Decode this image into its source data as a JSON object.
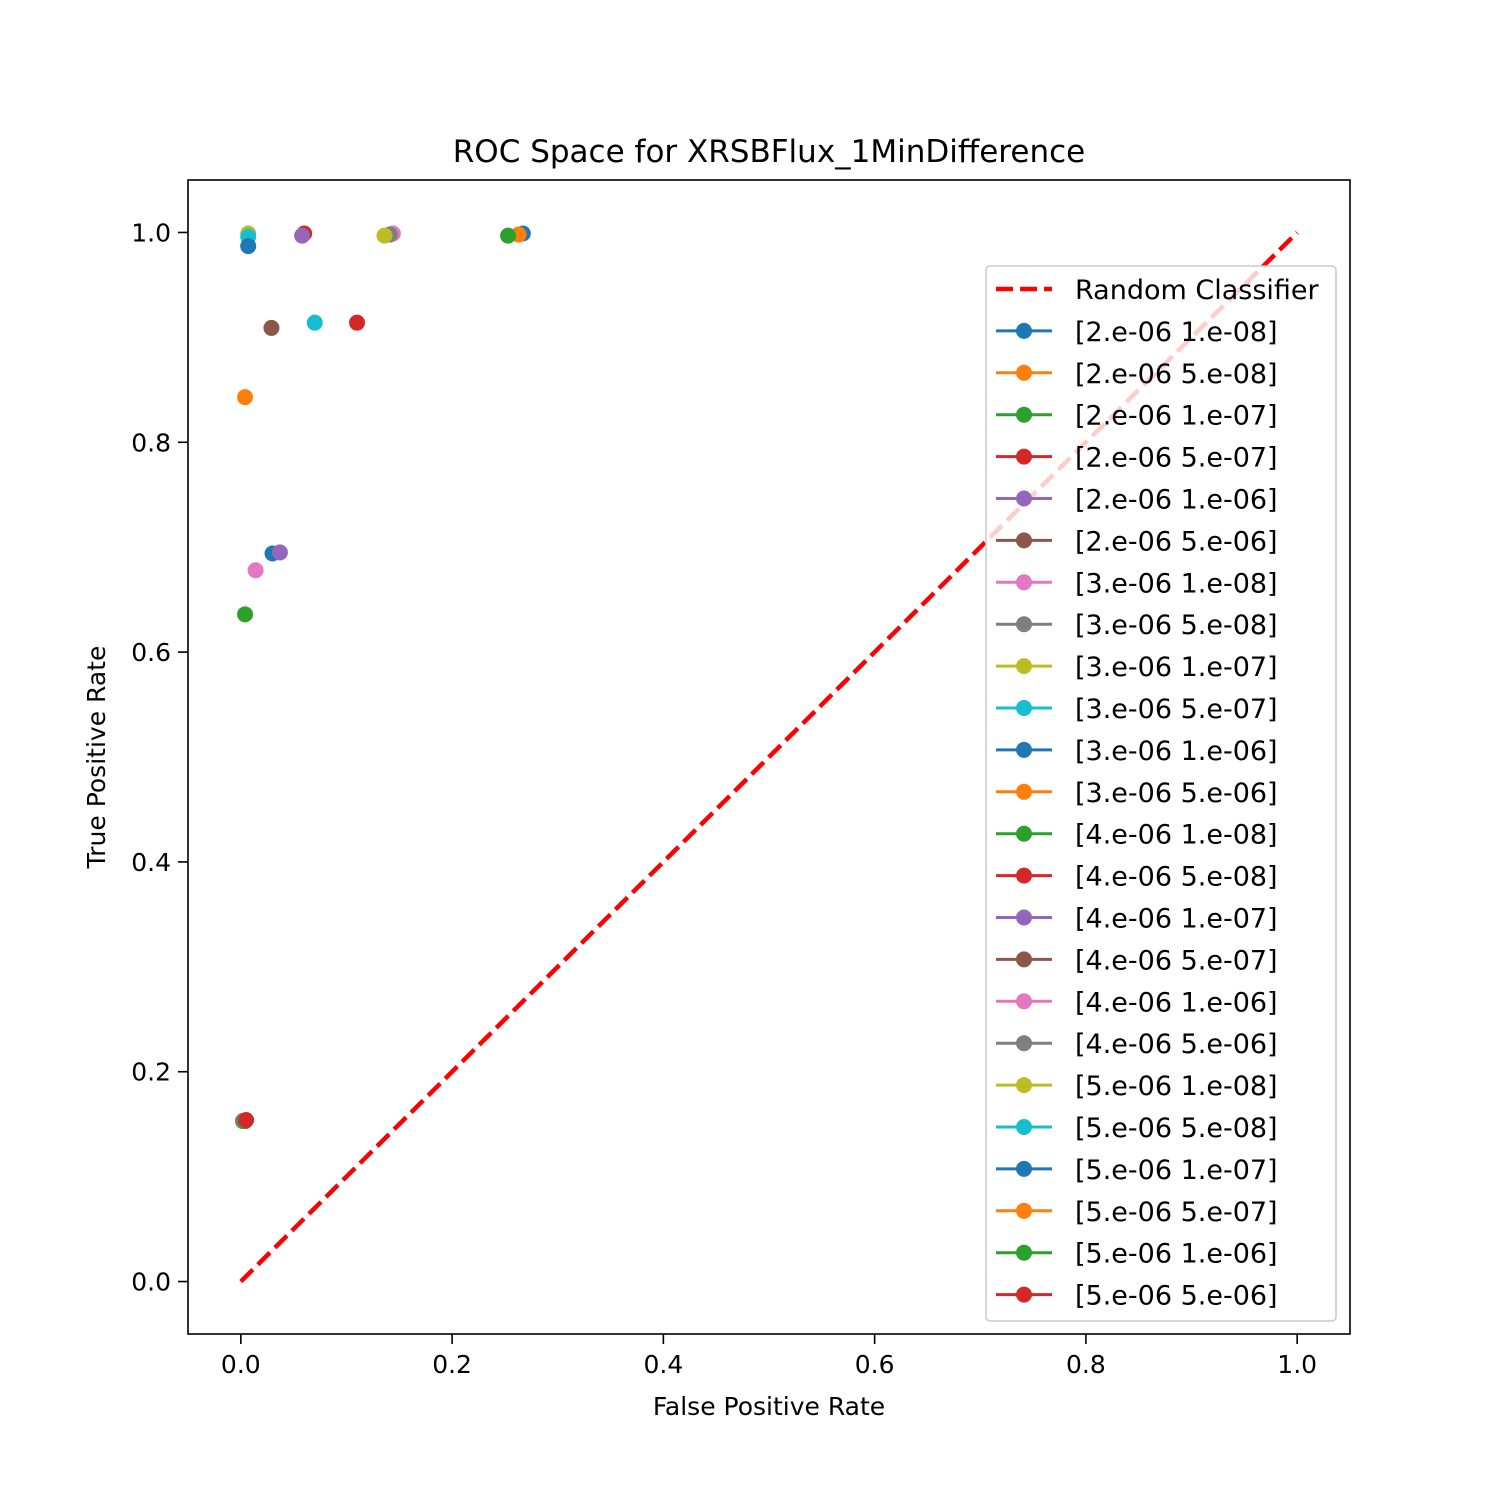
{
  "chart_data": {
    "type": "scatter",
    "title": "ROC Space for XRSBFlux_1MinDifference",
    "xlabel": "False Positive Rate",
    "ylabel": "True Positive Rate",
    "xlim": [
      -0.05,
      1.05
    ],
    "ylim": [
      -0.05,
      1.05
    ],
    "xticks": [
      "0.0",
      "0.2",
      "0.4",
      "0.6",
      "0.8",
      "1.0"
    ],
    "yticks": [
      "0.0",
      "0.2",
      "0.4",
      "0.6",
      "0.8",
      "1.0"
    ],
    "grid": false,
    "legend_position": "right",
    "reference_line": {
      "name": "Random Classifier",
      "x": [
        0,
        1
      ],
      "y": [
        0,
        1
      ],
      "color": "#ff0000",
      "style": "dashed"
    },
    "series": [
      {
        "name": "[2.e-06 1.e-08]",
        "color": "#1f77b4",
        "x": 0.267,
        "y": 0.999
      },
      {
        "name": "[2.e-06 5.e-08]",
        "color": "#ff7f0e",
        "x": 0.263,
        "y": 0.998
      },
      {
        "name": "[2.e-06 1.e-07]",
        "color": "#2ca02c",
        "x": 0.253,
        "y": 0.997
      },
      {
        "name": "[2.e-06 5.e-07]",
        "color": "#d62728",
        "x": 0.06,
        "y": 0.999
      },
      {
        "name": "[2.e-06 1.e-06]",
        "color": "#9467bd",
        "x": 0.058,
        "y": 0.997
      },
      {
        "name": "[2.e-06 5.e-06]",
        "color": "#8c564b",
        "x": 0.029,
        "y": 0.909
      },
      {
        "name": "[3.e-06 1.e-08]",
        "color": "#e377c2",
        "x": 0.144,
        "y": 0.999
      },
      {
        "name": "[3.e-06 5.e-08]",
        "color": "#7f7f7f",
        "x": 0.141,
        "y": 0.998
      },
      {
        "name": "[3.e-06 1.e-07]",
        "color": "#bcbd22",
        "x": 0.136,
        "y": 0.997
      },
      {
        "name": "[3.e-06 5.e-07]",
        "color": "#17becf",
        "x": 0.07,
        "y": 0.914
      },
      {
        "name": "[3.e-06 1.e-06]",
        "color": "#1f77b4",
        "x": 0.03,
        "y": 0.694
      },
      {
        "name": "[3.e-06 5.e-06]",
        "color": "#ff7f0e",
        "x": 0.004,
        "y": 0.843
      },
      {
        "name": "[4.e-06 1.e-08]",
        "color": "#2ca02c",
        "x": 0.004,
        "y": 0.636
      },
      {
        "name": "[4.e-06 5.e-08]",
        "color": "#d62728",
        "x": 0.11,
        "y": 0.914
      },
      {
        "name": "[4.e-06 1.e-07]",
        "color": "#9467bd",
        "x": 0.037,
        "y": 0.695
      },
      {
        "name": "[4.e-06 5.e-07]",
        "color": "#8c564b",
        "x": 0.002,
        "y": 0.153
      },
      {
        "name": "[4.e-06 1.e-06]",
        "color": "#e377c2",
        "x": 0.014,
        "y": 0.678
      },
      {
        "name": "[4.e-06 5.e-06]",
        "color": "#7f7f7f",
        "x": 0.002,
        "y": 0.153
      },
      {
        "name": "[5.e-06 1.e-08]",
        "color": "#bcbd22",
        "x": 0.007,
        "y": 0.999
      },
      {
        "name": "[5.e-06 5.e-08]",
        "color": "#17becf",
        "x": 0.007,
        "y": 0.996
      },
      {
        "name": "[5.e-06 1.e-07]",
        "color": "#1f77b4",
        "x": 0.007,
        "y": 0.987
      },
      {
        "name": "[5.e-06 5.e-07]",
        "color": "#ff7f0e",
        "x": 0.004,
        "y": 0.153
      },
      {
        "name": "[5.e-06 1.e-06]",
        "color": "#2ca02c",
        "x": 0.004,
        "y": 0.153
      },
      {
        "name": "[5.e-06 5.e-06]",
        "color": "#d62728",
        "x": 0.005,
        "y": 0.154
      }
    ]
  }
}
